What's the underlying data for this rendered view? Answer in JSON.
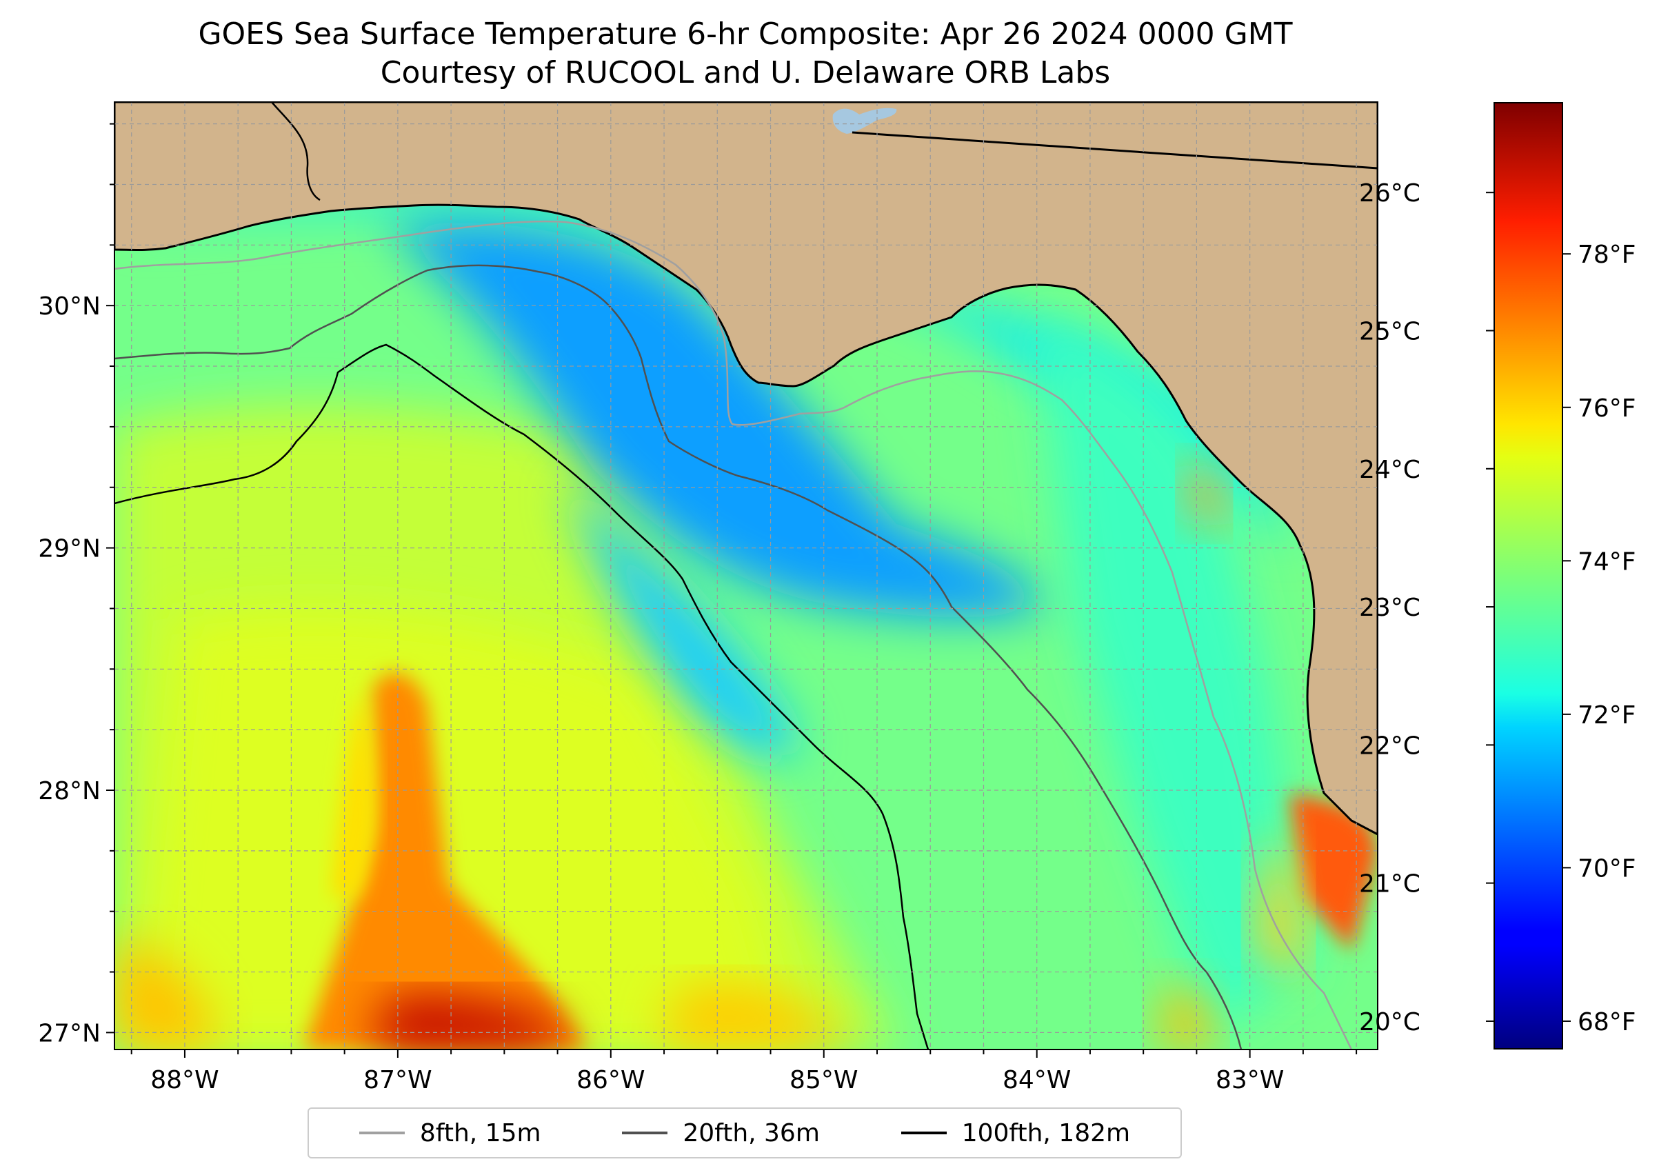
{
  "title": {
    "line1": "GOES Sea Surface Temperature 6-hr Composite: Apr 26 2024 0000 GMT",
    "line2": "Courtesy of RUCOOL and U. Delaware ORB Labs"
  },
  "map": {
    "extent": {
      "lon_min": -88.33,
      "lon_max": -82.4,
      "lat_min": 26.93,
      "lat_max": 30.84
    },
    "lon_ticks": [
      {
        "lon": -88,
        "label": "88°W"
      },
      {
        "lon": -87,
        "label": "87°W"
      },
      {
        "lon": -86,
        "label": "86°W"
      },
      {
        "lon": -85,
        "label": "85°W"
      },
      {
        "lon": -84,
        "label": "84°W"
      },
      {
        "lon": -83,
        "label": "83°W"
      }
    ],
    "lat_ticks": [
      {
        "lat": 30,
        "label": "30°N"
      },
      {
        "lat": 29,
        "label": "29°N"
      },
      {
        "lat": 28,
        "label": "28°N"
      },
      {
        "lat": 27,
        "label": "27°N"
      }
    ],
    "gridlines": "dashed every 0.25°",
    "colors": {
      "land": "#d2b48c",
      "coastline": "#000000",
      "lake": "#a6c8e0"
    },
    "isobaths": [
      {
        "label": "8fth, 15m",
        "color": "#a0a0a0"
      },
      {
        "label": "20fth, 36m",
        "color": "#505050"
      },
      {
        "label": "100fth, 182m",
        "color": "#000000"
      }
    ]
  },
  "colorbar": {
    "colormap": "jet",
    "range_c": [
      19.8,
      26.65
    ],
    "celsius_ticks": [
      {
        "value": 20,
        "label": "20°C"
      },
      {
        "value": 21,
        "label": "21°C"
      },
      {
        "value": 22,
        "label": "22°C"
      },
      {
        "value": 23,
        "label": "23°C"
      },
      {
        "value": 24,
        "label": "24°C"
      },
      {
        "value": 25,
        "label": "25°C"
      },
      {
        "value": 26,
        "label": "26°C"
      }
    ],
    "fahrenheit_ticks": [
      {
        "value": 68,
        "label": "68°F"
      },
      {
        "value": 70,
        "label": "70°F"
      },
      {
        "value": 72,
        "label": "72°F"
      },
      {
        "value": 74,
        "label": "74°F"
      },
      {
        "value": 76,
        "label": "76°F"
      },
      {
        "value": 78,
        "label": "78°F"
      }
    ]
  }
}
